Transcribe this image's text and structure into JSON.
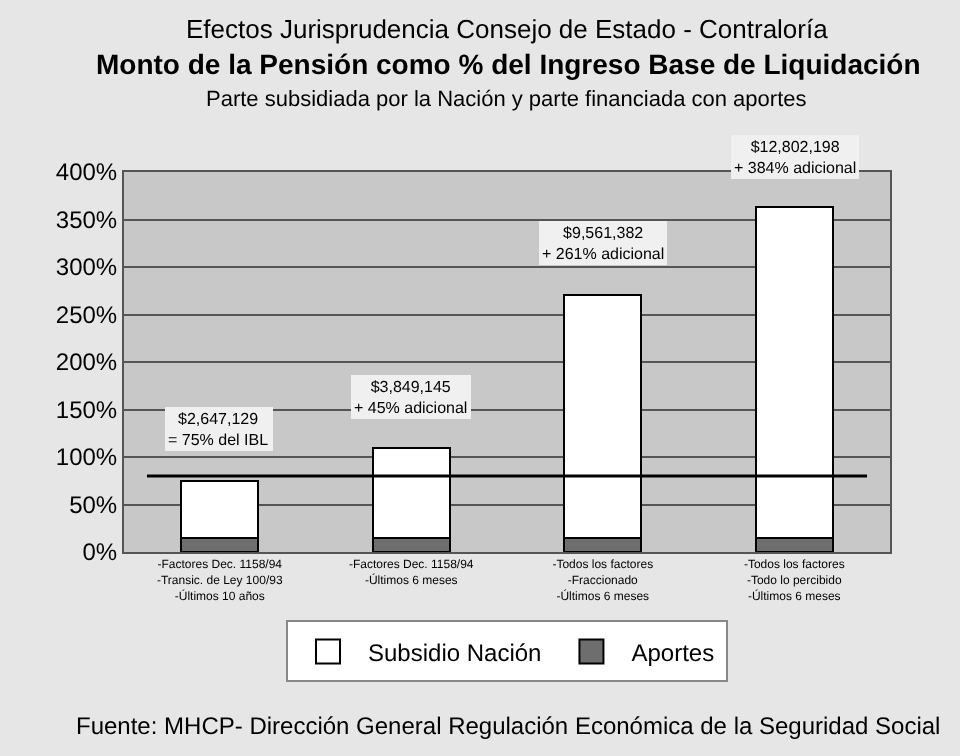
{
  "chart_data": {
    "type": "bar",
    "stacked": true,
    "title": "Efectos Jurisprudencia Consejo de Estado - Contraloría",
    "subtitle": "Monto de la Pensión como % del Ingreso Base de Liquidación\nParte subsidiada por la Nación y parte financiada con aportes",
    "categories": [
      "-Factores Dec. 1158/94\n-Transic. de Ley 100/93\n-Últimos 10 años",
      "-Factores Dec. 1158/94\n-Últimos 6 meses",
      "-Todos los factores\n-Fraccionado\n-Últimos 6 meses",
      "-Todos los factores\n-Todo lo percibido\n-Últimos 6 meses"
    ],
    "series": [
      {
        "name": "Aportes",
        "color": "#6e6e6e",
        "values": [
          15,
          15,
          15,
          15
        ]
      },
      {
        "name": "Subsidio Nación",
        "color": "#ffffff",
        "values": [
          60,
          94,
          256,
          348
        ]
      }
    ],
    "ylim": [
      0,
      400
    ],
    "yticks": [
      {
        "value": 0,
        "label": "0%"
      },
      {
        "value": 50,
        "label": "50%"
      },
      {
        "value": 100,
        "label": "100%"
      },
      {
        "value": 150,
        "label": "150%"
      },
      {
        "value": 200,
        "label": "200%"
      },
      {
        "value": 250,
        "label": "250%"
      },
      {
        "value": 300,
        "label": "300%"
      },
      {
        "value": 350,
        "label": "350%"
      },
      {
        "value": 400,
        "label": "400%"
      }
    ],
    "grid": "y",
    "legend": "bottom",
    "ref_lines": [
      {
        "axis": "y",
        "value": 80,
        "color": "#000000"
      }
    ],
    "annotations": [
      {
        "text": "$2,647,129\n= 75% del IBL",
        "x": "-Factores Dec. 1158/94\n-Transic. de Ley 100/93\n-Últimos 10 años",
        "y": 75
      },
      {
        "text": "$3,849,145\n+ 45% adicional",
        "x": "-Factores Dec. 1158/94\n-Últimos 6 meses",
        "y": 109
      },
      {
        "text": "$9,561,382\n+ 261% adicional",
        "x": "-Todos los factores\n-Fraccionado\n-Últimos 6 meses",
        "y": 271
      },
      {
        "text": "$12,802,198\n+ 384% adicional",
        "x": "-Todos los factores\n-Todo lo percibido\n-Últimos 6 meses",
        "y": 363
      },
      "Fuente: MHCP- Dirección General Regulación Económica de la Seguridad Social"
    ]
  }
}
